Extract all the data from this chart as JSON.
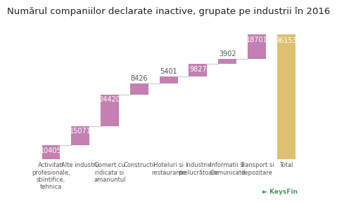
{
  "title": "Numărul companiilor declarate inactive, grupate pe industrii în 2016",
  "categories": [
    "Activitati\nprofesionale,\nstiintifice,\ntehnica",
    "Alte industrii",
    "Comert cu\nridicata si\namanuntul",
    "Constructii",
    "Hoteluri si\nrestaurante",
    "Industrie\nprelucrătoare",
    "Informatii si\nComunicatii",
    "Transport si\ndepozitare",
    "Total"
  ],
  "values": [
    10405,
    15071,
    24420,
    8426,
    5401,
    9827,
    3902,
    18701,
    96153
  ],
  "bar_color": "#c47fb3",
  "total_color": "#dfc070",
  "bg_color": "#ffffff",
  "title_fontsize": 9.5,
  "label_fontsize": 6.0,
  "value_fontsize": 7.0,
  "connector_color": "#cccccc",
  "value_color_inside": "#ffffff",
  "value_color_outside": "#555555"
}
